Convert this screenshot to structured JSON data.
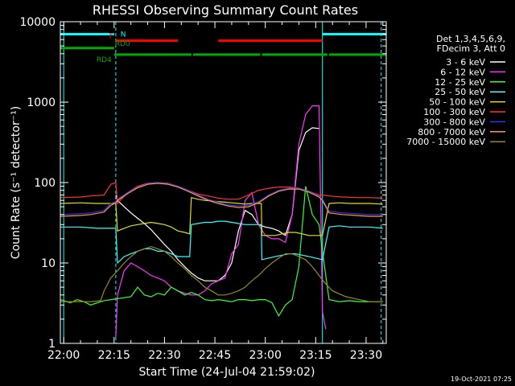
{
  "chart_data": {
    "type": "line",
    "title": "RHESSI Observing Summary Count Rates",
    "xlabel": "Start Time (24-Jul-04 21:59:02)",
    "ylabel": "Count Rate (s⁻¹ detector⁻¹)",
    "x_unit": "minutes since 22:00 UT",
    "xlim": [
      -1,
      96
    ],
    "ylim": [
      1,
      10000
    ],
    "yscale": "log",
    "x_ticks": [
      {
        "x": 0,
        "label": "22:00"
      },
      {
        "x": 15,
        "label": "22:15"
      },
      {
        "x": 30,
        "label": "22:30"
      },
      {
        "x": 45,
        "label": "22:45"
      },
      {
        "x": 60,
        "label": "23:00"
      },
      {
        "x": 75,
        "label": "23:15"
      },
      {
        "x": 90,
        "label": "23:30"
      }
    ],
    "y_ticks": [
      {
        "y": 1,
        "label": "1"
      },
      {
        "y": 10,
        "label": "10"
      },
      {
        "y": 100,
        "label": "100"
      },
      {
        "y": 1000,
        "label": "1000"
      },
      {
        "y": 10000,
        "label": "10000"
      }
    ],
    "legend": {
      "placement": "right",
      "header": [
        "Det 1,3,4,5,6,9,",
        "FDecim 3, Att 0"
      ],
      "entries": [
        {
          "label": "3 - 6 keV",
          "color": "#ffffff"
        },
        {
          "label": "6 - 12 keV",
          "color": "#ff33ff"
        },
        {
          "label": "12 - 25 keV",
          "color": "#33ff33"
        },
        {
          "label": "25 - 50 keV",
          "color": "#33ffff"
        },
        {
          "label": "50 - 100 keV",
          "color": "#dddd22"
        },
        {
          "label": "100 - 300 keV",
          "color": "#ff3333"
        },
        {
          "label": "300 - 800 keV",
          "color": "#3333ff"
        },
        {
          "label": "800 - 7000 keV",
          "color": "#ff9933"
        },
        {
          "label": "7000 - 15000 keV",
          "color": "#998822"
        }
      ]
    },
    "flag_bars": [
      {
        "label": "N",
        "color": "#00ffff",
        "y": 7000,
        "segments": [
          [
            -1,
            15
          ],
          [
            77,
            96
          ]
        ]
      },
      {
        "label": "F",
        "color": "#ff0000",
        "y": 5800,
        "segments": [
          [
            15.5,
            34
          ],
          [
            46,
            77
          ]
        ]
      },
      {
        "label": "RD0",
        "color": "#00aa00",
        "y": 4700,
        "segments": [
          [
            -1,
            15
          ]
        ]
      },
      {
        "label": "RD4",
        "color": "#00aa00",
        "y": 3900,
        "segments": [
          [
            15,
            38
          ],
          [
            38.5,
            58.5
          ],
          [
            59,
            78.5
          ],
          [
            79,
            96
          ]
        ]
      }
    ],
    "vlines": [
      {
        "x": 0,
        "color": "#00ffff",
        "style": "solid"
      },
      {
        "x": 15.5,
        "color": "#00ffff",
        "style": "dashed"
      },
      {
        "x": 77,
        "color": "#00ffff",
        "style": "solid"
      },
      {
        "x": 94.5,
        "color": "#00ffff",
        "style": "dashed"
      }
    ],
    "series": [
      {
        "name": "3 - 6 keV",
        "color": "#ffffff",
        "x": [
          15.5,
          16,
          18,
          20,
          22,
          24,
          26,
          28,
          30,
          32,
          34,
          36,
          38,
          40,
          42,
          44,
          46,
          48,
          50,
          52,
          54,
          56,
          58,
          60,
          62,
          64,
          66,
          68,
          70,
          72,
          74,
          76
        ],
        "y": [
          70,
          60,
          50,
          42,
          36,
          31,
          26,
          21,
          17,
          14,
          11,
          9,
          7.5,
          6.5,
          6,
          6,
          6,
          7,
          10,
          25,
          45,
          40,
          30,
          28,
          27,
          25,
          22,
          40,
          250,
          420,
          480,
          470
        ]
      },
      {
        "name": "6 - 12 keV",
        "color": "#ff33ff",
        "x": [
          15.5,
          16,
          18,
          20,
          22,
          24,
          26,
          28,
          30,
          32,
          34,
          36,
          38,
          40,
          42,
          44,
          46,
          48,
          50,
          52,
          54,
          56,
          58,
          60,
          62,
          64,
          66,
          68,
          70,
          72,
          74,
          76,
          77,
          78
        ],
        "y": [
          1.2,
          4,
          8,
          10,
          9,
          8,
          7,
          6.5,
          6,
          5,
          4.5,
          4.2,
          4,
          4,
          4.5,
          5.5,
          6,
          6.5,
          13,
          17,
          60,
          75,
          30,
          22,
          20,
          20,
          18,
          40,
          300,
          700,
          900,
          900,
          2.5,
          1.5
        ]
      },
      {
        "name": "12 - 25 keV",
        "color": "#33ff33",
        "x": [
          -1,
          2,
          4,
          6,
          8,
          10,
          12,
          14,
          16,
          18,
          20,
          22,
          24,
          26,
          28,
          30,
          32,
          34,
          36,
          38,
          40,
          42,
          44,
          46,
          48,
          50,
          52,
          54,
          56,
          58,
          60,
          62,
          64,
          66,
          68,
          70,
          72,
          74,
          76,
          77,
          79,
          82,
          85,
          88,
          91,
          95
        ],
        "y": [
          3.5,
          3.2,
          3.5,
          3.3,
          3,
          3.2,
          3.4,
          3.5,
          3.6,
          3.7,
          3.8,
          5,
          4,
          3.8,
          4.2,
          4,
          5,
          4.5,
          4,
          4.3,
          4,
          3.5,
          3.4,
          3.5,
          3.4,
          3.3,
          3.5,
          3.5,
          3.4,
          3.5,
          3.5,
          3.2,
          2.2,
          3,
          3.5,
          9,
          90,
          40,
          30,
          14,
          3.5,
          3.3,
          3.4,
          3.3,
          3.3,
          3.3
        ]
      },
      {
        "name": "25 - 50 keV",
        "color": "#33ffff",
        "x": [
          -1,
          5,
          10,
          14,
          15.5,
          16,
          18,
          20,
          22,
          24,
          26,
          28,
          30,
          32,
          34,
          36,
          37.5,
          38,
          40,
          42,
          44,
          46,
          48,
          50,
          52,
          54,
          56,
          58,
          58.8,
          59,
          61,
          63,
          65,
          67,
          69,
          71,
          73,
          75,
          77,
          79,
          82,
          85,
          88,
          91,
          95
        ],
        "y": [
          28,
          28,
          27,
          27,
          27,
          10,
          12,
          13,
          14,
          15,
          15,
          14,
          14,
          13,
          12,
          12,
          12,
          30,
          31,
          32,
          32,
          33,
          33,
          32,
          31,
          30,
          30,
          30,
          30,
          11,
          11.5,
          12,
          12.5,
          13,
          13,
          12.5,
          12,
          11.5,
          11,
          28,
          29,
          28,
          28,
          28,
          27
        ]
      },
      {
        "name": "50 - 100 keV",
        "color": "#dddd22",
        "x": [
          -1,
          5,
          10,
          14,
          15.5,
          16,
          18,
          20,
          22,
          24,
          26,
          28,
          30,
          32,
          34,
          36,
          37.5,
          38,
          40,
          42,
          44,
          46,
          48,
          50,
          52,
          54,
          56,
          58,
          58.8,
          59,
          61,
          63,
          65,
          67,
          69,
          71,
          73,
          75,
          77,
          79,
          82,
          85,
          88,
          91,
          95
        ],
        "y": [
          55,
          56,
          55,
          55,
          55,
          25,
          27,
          29,
          30,
          31,
          32,
          31,
          30,
          28,
          25,
          24,
          23,
          65,
          62,
          60,
          59,
          58,
          57,
          56,
          55,
          54,
          55,
          55,
          55,
          22,
          22,
          22,
          23,
          24,
          24,
          23,
          22,
          22,
          22,
          55,
          56,
          55,
          55,
          55,
          54
        ]
      },
      {
        "name": "100 - 300 keV",
        "color": "#ff3333",
        "x": [
          -1,
          5,
          8,
          12,
          14,
          15.5,
          16,
          19,
          22,
          25,
          28,
          31,
          34,
          37,
          40,
          43,
          46,
          49,
          52,
          55,
          58,
          61,
          64,
          67,
          70,
          73,
          76,
          77,
          79,
          83,
          87,
          91,
          95
        ],
        "y": [
          65,
          66,
          68,
          70,
          95,
          100,
          55,
          75,
          90,
          98,
          100,
          98,
          90,
          80,
          72,
          68,
          64,
          62,
          62,
          70,
          80,
          85,
          88,
          88,
          85,
          78,
          70,
          70,
          68,
          66,
          65,
          65,
          64
        ]
      },
      {
        "name": "300 - 800 keV",
        "color": "#3333ff",
        "x": [
          -1,
          5,
          8,
          12,
          14,
          15.5,
          16,
          19,
          22,
          25,
          28,
          31,
          34,
          37,
          40,
          43,
          46,
          49,
          52,
          55,
          58,
          61,
          64,
          67,
          70,
          73,
          76,
          77,
          79,
          83,
          87,
          91,
          95
        ],
        "y": [
          40,
          41,
          42,
          45,
          55,
          58,
          62,
          75,
          88,
          97,
          100,
          97,
          90,
          80,
          70,
          62,
          57,
          53,
          51,
          52,
          58,
          70,
          80,
          85,
          85,
          78,
          68,
          62,
          44,
          42,
          41,
          40,
          40
        ]
      },
      {
        "name": "800 - 7000 keV",
        "color": "#ff9933",
        "x": [
          -1,
          5,
          8,
          12,
          14,
          15.5,
          16,
          19,
          22,
          25,
          28,
          31,
          34,
          37,
          40,
          43,
          46,
          49,
          52,
          55,
          58,
          61,
          64,
          67,
          70,
          73,
          76,
          77,
          79,
          83,
          87,
          91,
          95
        ],
        "y": [
          38,
          39,
          40,
          43,
          52,
          56,
          60,
          73,
          86,
          95,
          98,
          95,
          88,
          78,
          68,
          60,
          55,
          51,
          49,
          50,
          56,
          68,
          78,
          83,
          83,
          76,
          66,
          60,
          42,
          40,
          39,
          38,
          38
        ]
      },
      {
        "name": "7000 - 15000 keV",
        "color": "#998822",
        "x": [
          -1,
          4,
          8,
          11,
          12,
          14,
          16,
          18,
          20,
          22,
          24,
          26,
          28,
          30,
          32,
          34,
          36,
          38,
          40,
          42,
          44,
          46,
          48,
          50,
          52,
          54,
          56,
          58,
          60,
          62,
          64,
          66,
          68,
          70,
          72,
          74,
          76,
          78,
          80,
          84,
          88,
          91,
          93,
          95
        ],
        "y": [
          3.3,
          3.3,
          3.3,
          3.4,
          4.5,
          6.5,
          8,
          10,
          12,
          14,
          15,
          16,
          15,
          14,
          12,
          10,
          8.5,
          7,
          6,
          5,
          4.5,
          4,
          4,
          4.2,
          4.5,
          5,
          6,
          7,
          8.5,
          10,
          11.5,
          13,
          13,
          12,
          11,
          9,
          7,
          5.5,
          4.5,
          3.8,
          3.5,
          3.3,
          3.3,
          3.3
        ]
      }
    ],
    "footer_timestamp": "19-Oct-2021 07:25"
  }
}
